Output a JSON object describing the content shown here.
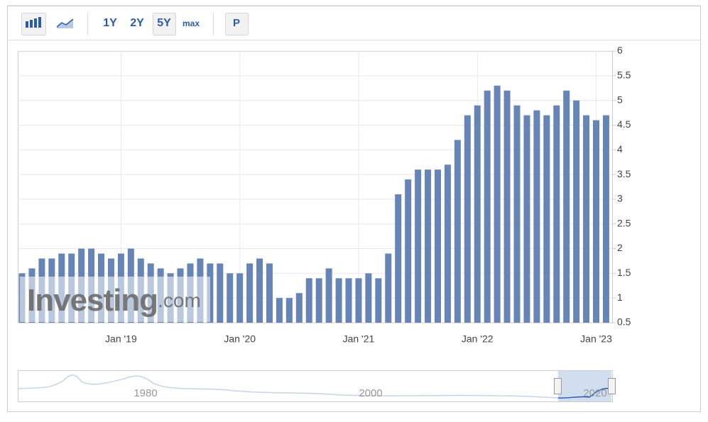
{
  "toolbar": {
    "buttons": [
      "1Y",
      "2Y",
      "5Y",
      "max",
      "P"
    ]
  },
  "chart_data": {
    "type": "bar",
    "categories": [
      null,
      null,
      null,
      null,
      null,
      null,
      null,
      null,
      null,
      null,
      "Jan '19",
      null,
      null,
      null,
      null,
      null,
      null,
      null,
      null,
      null,
      null,
      null,
      "Jan '20",
      null,
      null,
      null,
      null,
      null,
      null,
      null,
      null,
      null,
      null,
      null,
      "Jan '21",
      null,
      null,
      null,
      null,
      null,
      null,
      null,
      null,
      null,
      null,
      null,
      "Jan '22",
      null,
      null,
      null,
      null,
      null,
      null,
      null,
      null,
      null,
      null,
      null,
      "Jan '23",
      null
    ],
    "values": [
      1.5,
      1.6,
      1.8,
      1.8,
      1.9,
      1.9,
      2.0,
      2.0,
      1.9,
      1.8,
      1.9,
      2.0,
      1.8,
      1.7,
      1.6,
      1.5,
      1.6,
      1.7,
      1.8,
      1.7,
      1.7,
      1.5,
      1.5,
      1.7,
      1.8,
      1.7,
      1.0,
      1.0,
      1.1,
      1.4,
      1.4,
      1.6,
      1.4,
      1.4,
      1.4,
      1.5,
      1.4,
      1.9,
      3.1,
      3.4,
      3.6,
      3.6,
      3.6,
      3.7,
      4.2,
      4.7,
      4.9,
      5.2,
      5.3,
      5.2,
      4.9,
      4.7,
      4.8,
      4.7,
      4.9,
      5.2,
      5.0,
      4.7,
      4.6,
      4.7
    ],
    "color": "#6685b6",
    "ylim": [
      0.5,
      6
    ],
    "yticks": [
      0.5,
      1,
      1.5,
      2,
      2.5,
      3,
      3.5,
      4,
      4.5,
      5,
      5.5,
      6
    ],
    "grid": true,
    "watermark": "Investing",
    "watermark_suffix": ".com"
  },
  "navigator": {
    "labels": [
      "1980",
      "2000",
      "2020"
    ]
  }
}
